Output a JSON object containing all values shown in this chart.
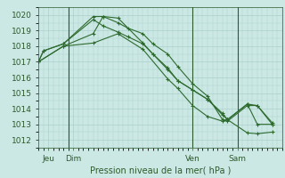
{
  "title": "Pression niveau de la mer( hPa )",
  "ylabel_vals": [
    1012,
    1013,
    1014,
    1015,
    1016,
    1017,
    1018,
    1019,
    1020
  ],
  "ylim": [
    1011.5,
    1020.5
  ],
  "background_color": "#cce8e4",
  "grid_color": "#aad0cc",
  "line_color": "#2d6a2d",
  "tick_label_color": "#2d5a2d",
  "vline_color": "#2d5a2d",
  "series": [
    {
      "x": [
        0,
        1,
        5,
        11,
        13,
        16,
        18,
        21,
        23,
        26,
        28,
        31,
        34,
        37,
        38,
        42,
        44,
        47
      ],
      "y": [
        1017.0,
        1017.7,
        1018.15,
        1019.9,
        1019.9,
        1019.5,
        1019.15,
        1018.8,
        1018.15,
        1017.5,
        1016.7,
        1015.6,
        1014.8,
        1013.3,
        1013.2,
        1014.2,
        1014.2,
        1013.1
      ],
      "marker": "+"
    },
    {
      "x": [
        0,
        1,
        5,
        11,
        13,
        16,
        18,
        21,
        23,
        26,
        28,
        31,
        34,
        37,
        38,
        42,
        44,
        47
      ],
      "y": [
        1017.0,
        1017.7,
        1018.15,
        1019.7,
        1019.3,
        1018.9,
        1018.6,
        1018.15,
        1017.5,
        1016.6,
        1015.8,
        1015.2,
        1014.6,
        1013.6,
        1013.3,
        1014.3,
        1014.2,
        1013.0
      ],
      "marker": "+"
    },
    {
      "x": [
        0,
        5,
        11,
        13,
        16,
        21,
        23,
        26,
        28,
        31,
        34,
        37,
        38,
        42,
        44,
        47
      ],
      "y": [
        1017.0,
        1018.0,
        1018.8,
        1019.9,
        1019.8,
        1018.2,
        1017.5,
        1016.5,
        1015.8,
        1015.2,
        1014.6,
        1013.7,
        1013.3,
        1012.45,
        1012.4,
        1012.5
      ],
      "marker": "+"
    },
    {
      "x": [
        0,
        5,
        11,
        16,
        21,
        26,
        28,
        31,
        34,
        37,
        38,
        42,
        44,
        47
      ],
      "y": [
        1017.0,
        1018.0,
        1018.2,
        1018.8,
        1017.8,
        1015.9,
        1015.3,
        1014.2,
        1013.5,
        1013.2,
        1013.3,
        1014.3,
        1013.0,
        1013.0
      ],
      "marker": "+"
    }
  ],
  "xlim": [
    0,
    49
  ],
  "xtick_positions": [
    2,
    7,
    31,
    40
  ],
  "xtick_labels": [
    "Jeu",
    "Dim",
    "Ven",
    "Sam"
  ],
  "vline_positions": [
    6,
    31,
    40
  ],
  "font_size_label": 7,
  "font_size_tick": 6.5
}
